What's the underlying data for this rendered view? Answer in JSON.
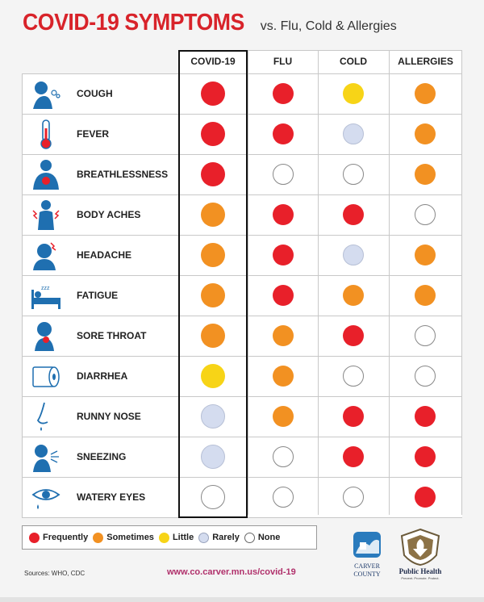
{
  "title": {
    "main": "COVID-19 SYMPTOMS",
    "sub": "vs. Flu, Cold & Allergies"
  },
  "columns": [
    "COVID-19",
    "FLU",
    "COLD",
    "ALLERGIES"
  ],
  "colors": {
    "frequently": "#e8202a",
    "sometimes": "#f29122",
    "little": "#f7d417",
    "rarely": "#d4dcef",
    "none": "#ffffff"
  },
  "rows": [
    {
      "label": "COUGH",
      "icon": "cough-icon",
      "values": [
        "frequently",
        "frequently",
        "little",
        "sometimes"
      ]
    },
    {
      "label": "FEVER",
      "icon": "thermometer-icon",
      "values": [
        "frequently",
        "frequently",
        "rarely",
        "sometimes"
      ]
    },
    {
      "label": "BREATHLESSNESS",
      "icon": "lungs-person-icon",
      "values": [
        "frequently",
        "none",
        "none",
        "sometimes"
      ]
    },
    {
      "label": "BODY ACHES",
      "icon": "body-ache-icon",
      "values": [
        "sometimes",
        "frequently",
        "frequently",
        "none"
      ]
    },
    {
      "label": "HEADACHE",
      "icon": "headache-icon",
      "values": [
        "sometimes",
        "frequently",
        "rarely",
        "sometimes"
      ]
    },
    {
      "label": "FATIGUE",
      "icon": "bed-icon",
      "values": [
        "sometimes",
        "frequently",
        "sometimes",
        "sometimes"
      ]
    },
    {
      "label": "SORE THROAT",
      "icon": "sore-throat-icon",
      "values": [
        "sometimes",
        "sometimes",
        "frequently",
        "none"
      ]
    },
    {
      "label": "DIARRHEA",
      "icon": "toilet-paper-icon",
      "values": [
        "little",
        "sometimes",
        "none",
        "none"
      ]
    },
    {
      "label": "RUNNY NOSE",
      "icon": "nose-drip-icon",
      "values": [
        "rarely",
        "sometimes",
        "frequently",
        "frequently"
      ]
    },
    {
      "label": "SNEEZING",
      "icon": "sneeze-icon",
      "values": [
        "rarely",
        "none",
        "frequently",
        "frequently"
      ]
    },
    {
      "label": "WATERY EYES",
      "icon": "eye-tear-icon",
      "values": [
        "none",
        "none",
        "none",
        "frequently"
      ]
    }
  ],
  "legend": [
    {
      "key": "frequently",
      "label": "Frequently"
    },
    {
      "key": "sometimes",
      "label": "Sometimes"
    },
    {
      "key": "little",
      "label": "Little"
    },
    {
      "key": "rarely",
      "label": "Rarely"
    },
    {
      "key": "none",
      "label": "None"
    }
  ],
  "footer": {
    "sources": "Sources: WHO, CDC",
    "url": "www.co.carver.mn.us/covid-19",
    "carver_logo_text": [
      "CARVER",
      "COUNTY"
    ],
    "ph_logo_text": "Public Health",
    "ph_tagline": "Prevent. Promote. Protect."
  }
}
